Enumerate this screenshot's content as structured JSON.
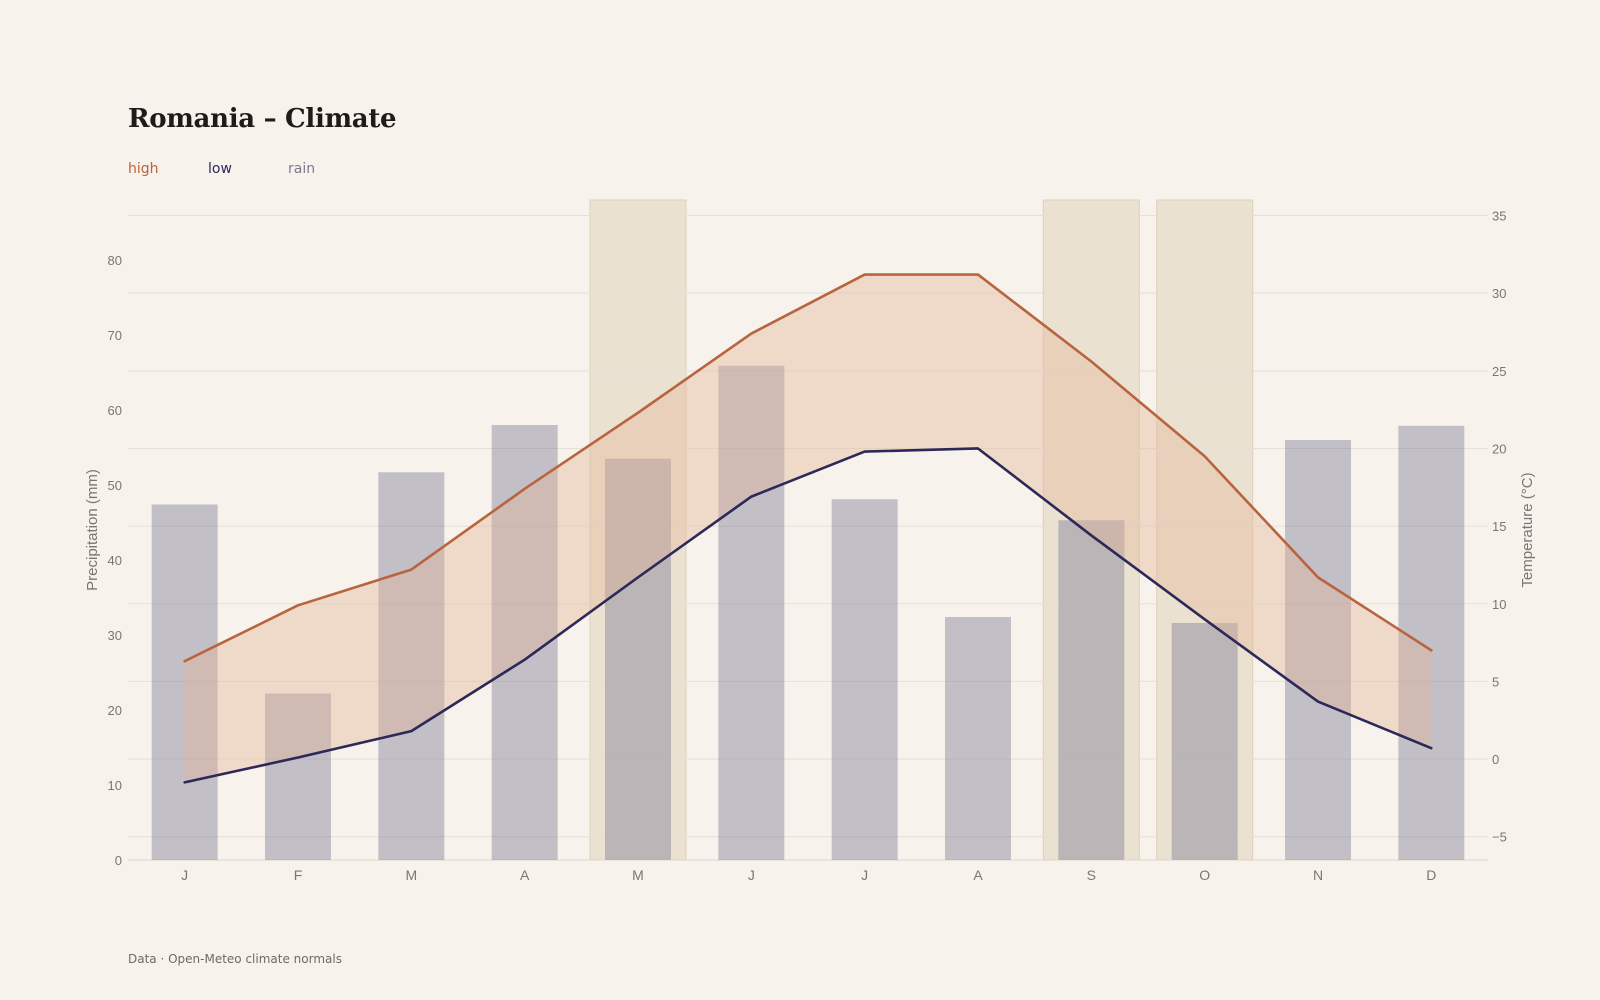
{
  "title": "Romania – Climate",
  "legend": {
    "high": "high",
    "low": "low",
    "rain": "rain"
  },
  "footer": "Data · Open-Meteo climate normals",
  "colors": {
    "high": "#b8643f",
    "low": "#2c2858",
    "rain": "#7d7993",
    "band": "#e3b698",
    "highlight": "#e6dac6",
    "grid": "#e6dfd6",
    "tick": "#7a7672"
  },
  "chart_data": {
    "type": "bar",
    "categories": [
      "J",
      "F",
      "M",
      "A",
      "M",
      "J",
      "J",
      "A",
      "S",
      "O",
      "N",
      "D"
    ],
    "series": [
      {
        "name": "rain",
        "type": "bar",
        "axis": "left",
        "values": [
          47.4,
          22.2,
          51.7,
          58.0,
          53.5,
          65.9,
          48.1,
          32.4,
          45.3,
          31.6,
          56.0,
          57.9
        ]
      },
      {
        "name": "high",
        "type": "line",
        "axis": "right",
        "values": [
          6.3,
          9.9,
          12.2,
          17.4,
          22.3,
          27.4,
          31.2,
          31.2,
          25.6,
          19.5,
          11.7,
          7.0
        ]
      },
      {
        "name": "low",
        "type": "line",
        "axis": "right",
        "values": [
          -1.5,
          0.1,
          1.8,
          6.4,
          11.7,
          16.9,
          19.8,
          20.0,
          14.4,
          9.0,
          3.7,
          0.7
        ]
      }
    ],
    "highlighted_months": [
      4,
      8,
      9
    ],
    "ylabel": "Precipitation (mm)",
    "y2label": "Temperature (°C)",
    "ylim": [
      0,
      88
    ],
    "y2lim": [
      -6.5,
      36
    ],
    "yticks": [
      0,
      10,
      20,
      30,
      40,
      50,
      60,
      70,
      80
    ],
    "y2ticks": [
      -5,
      0,
      5,
      10,
      15,
      20,
      25,
      30,
      35
    ],
    "grid": true
  }
}
